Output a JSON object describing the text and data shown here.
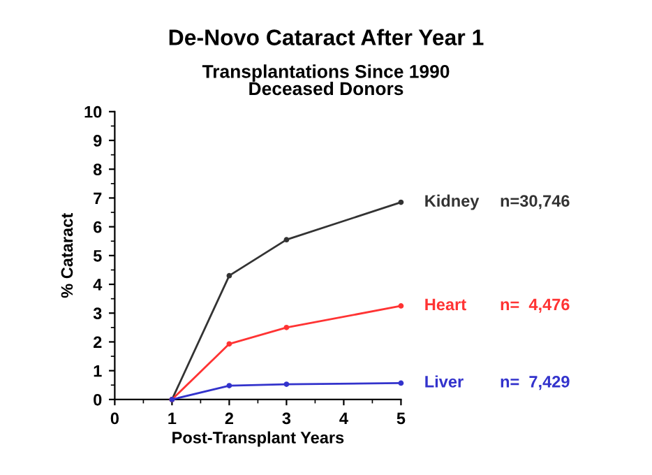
{
  "chart_data": {
    "type": "line",
    "title": "De-Novo Cataract After Year 1",
    "subtitle": "Transplantations Since 1990\nDeceased Donors",
    "xlabel": "Post-Transplant Years",
    "ylabel": "% Cataract",
    "xlim": [
      0,
      5
    ],
    "ylim": [
      0,
      10
    ],
    "xticks": [
      0,
      1,
      2,
      3,
      4,
      5
    ],
    "yticks": [
      0,
      1,
      2,
      3,
      4,
      5,
      6,
      7,
      8,
      9,
      10
    ],
    "x": [
      1,
      2,
      3,
      5
    ],
    "marker": "circle",
    "line_style": "solid",
    "grid": false,
    "legend": false,
    "series": [
      {
        "name": "Kidney",
        "color": "#333333",
        "values": [
          0,
          4.3,
          5.55,
          6.85
        ]
      },
      {
        "name": "Heart",
        "color": "#ff3333",
        "values": [
          0,
          1.93,
          2.5,
          3.25
        ]
      },
      {
        "name": "Liver",
        "color": "#3333cc",
        "values": [
          0,
          0.48,
          0.53,
          0.57
        ]
      }
    ],
    "annotations": [
      "n=30,746",
      "n=  4,476",
      "n=  7,429"
    ]
  }
}
